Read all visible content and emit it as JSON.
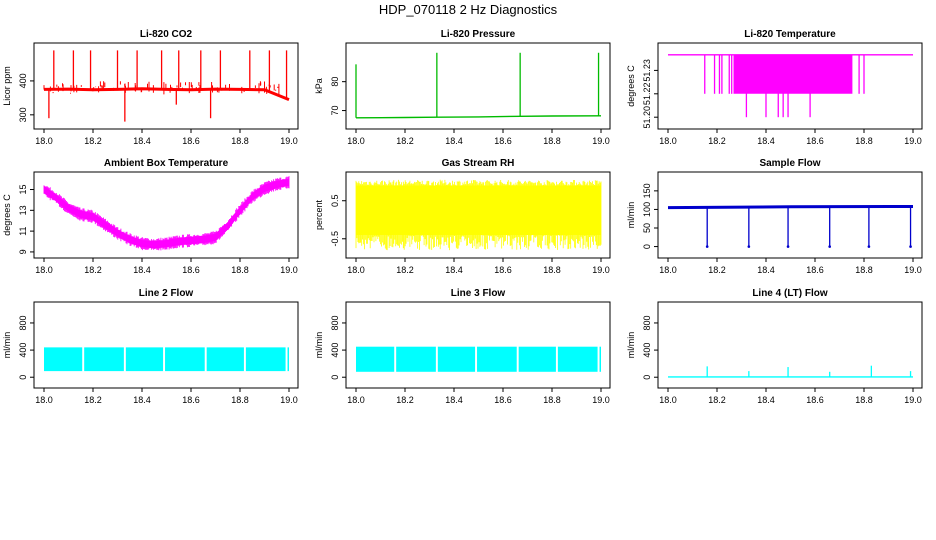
{
  "figure": {
    "title": "HDP_070118  2 Hz Diagnostics"
  },
  "chart_data": [
    {
      "id": "co2",
      "type": "line",
      "title": "Li-820 CO2",
      "ylabel": "Licor ppm",
      "color": "#ff0000",
      "xlim": [
        18.0,
        19.0
      ],
      "ylim": [
        270,
        500
      ],
      "xticks": [
        "18.0",
        "18.2",
        "18.4",
        "18.6",
        "18.8",
        "19.0"
      ],
      "yticks": [
        "300",
        "400"
      ],
      "ytick_values": [
        300,
        400
      ],
      "x": [
        18.0,
        18.1,
        18.2,
        18.3,
        18.4,
        18.5,
        18.6,
        18.7,
        18.8,
        18.9,
        19.0
      ],
      "values": [
        375,
        376,
        374,
        375,
        377,
        375,
        374,
        376,
        375,
        374,
        345
      ],
      "spikes_up": [
        {
          "x": 18.04,
          "y": 490
        },
        {
          "x": 18.12,
          "y": 490
        },
        {
          "x": 18.19,
          "y": 490
        },
        {
          "x": 18.3,
          "y": 490
        },
        {
          "x": 18.38,
          "y": 490
        },
        {
          "x": 18.48,
          "y": 490
        },
        {
          "x": 18.55,
          "y": 490
        },
        {
          "x": 18.64,
          "y": 490
        },
        {
          "x": 18.72,
          "y": 490
        },
        {
          "x": 18.84,
          "y": 490
        },
        {
          "x": 18.92,
          "y": 490
        },
        {
          "x": 18.99,
          "y": 490
        }
      ],
      "spikes_down": [
        {
          "x": 18.02,
          "y": 290
        },
        {
          "x": 18.33,
          "y": 280
        },
        {
          "x": 18.68,
          "y": 290
        },
        {
          "x": 18.54,
          "y": 330
        }
      ]
    },
    {
      "id": "pressure",
      "type": "line",
      "title": "Li-820 Pressure",
      "ylabel": "kPa",
      "color": "#00bb00",
      "xlim": [
        18.0,
        19.0
      ],
      "ylim": [
        65,
        92
      ],
      "xticks": [
        "18.0",
        "18.2",
        "18.4",
        "18.6",
        "18.8",
        "19.0"
      ],
      "yticks": [
        "70",
        "80"
      ],
      "ytick_values": [
        70,
        80
      ],
      "x": [
        18.0,
        18.2,
        18.33,
        18.5,
        18.67,
        18.8,
        19.0
      ],
      "values": [
        67.5,
        67.6,
        67.7,
        67.8,
        68.0,
        68.1,
        68.2
      ],
      "spikes_up": [
        {
          "x": 18.0,
          "y": 86
        },
        {
          "x": 18.33,
          "y": 90
        },
        {
          "x": 18.67,
          "y": 90
        },
        {
          "x": 18.99,
          "y": 90
        }
      ],
      "spikes_down": []
    },
    {
      "id": "licor_temp",
      "type": "line",
      "title": "Li-820 Temperature",
      "ylabel": "degrees C",
      "color": "#ff00ff",
      "xlim": [
        18.0,
        19.0
      ],
      "ylim": [
        51.195,
        51.245
      ],
      "xticks": [
        "18.0",
        "18.2",
        "18.4",
        "18.6",
        "18.8",
        "19.0"
      ],
      "yticks": [
        "51.20",
        "51.22",
        "51.23"
      ],
      "ytick_values": [
        51.2,
        51.215,
        51.23
      ],
      "x": [
        18.0,
        19.0
      ],
      "values": [
        51.24,
        51.24
      ],
      "dense_band": {
        "x0": 18.27,
        "x1": 18.75,
        "ymin": 51.215,
        "ymax": 51.24
      },
      "spikes_up": [],
      "spikes_down": [
        {
          "x": 18.15,
          "y": 51.215
        },
        {
          "x": 18.19,
          "y": 51.215
        },
        {
          "x": 18.21,
          "y": 51.215
        },
        {
          "x": 18.22,
          "y": 51.215
        },
        {
          "x": 18.25,
          "y": 51.215
        },
        {
          "x": 18.26,
          "y": 51.215
        },
        {
          "x": 18.32,
          "y": 51.2
        },
        {
          "x": 18.4,
          "y": 51.2
        },
        {
          "x": 18.45,
          "y": 51.2
        },
        {
          "x": 18.47,
          "y": 51.2
        },
        {
          "x": 18.49,
          "y": 51.2
        },
        {
          "x": 18.58,
          "y": 51.2
        },
        {
          "x": 18.78,
          "y": 51.215
        },
        {
          "x": 18.8,
          "y": 51.215
        }
      ]
    },
    {
      "id": "ambient_temp",
      "type": "line",
      "title": "Ambient Box Temperature",
      "ylabel": "degrees C",
      "color": "#ff00ff",
      "xlim": [
        18.0,
        19.0
      ],
      "ylim": [
        8.8,
        16.3
      ],
      "xticks": [
        "18.0",
        "18.2",
        "18.4",
        "18.6",
        "18.8",
        "19.0"
      ],
      "yticks": [
        "9",
        "11",
        "13",
        "15"
      ],
      "ytick_values": [
        9,
        11,
        13,
        15
      ],
      "x": [
        18.0,
        18.05,
        18.1,
        18.15,
        18.2,
        18.25,
        18.3,
        18.35,
        18.4,
        18.45,
        18.5,
        18.55,
        18.6,
        18.65,
        18.7,
        18.75,
        18.8,
        18.85,
        18.9,
        18.95,
        19.0
      ],
      "values": [
        15.0,
        14.2,
        13.2,
        12.6,
        12.4,
        11.6,
        10.8,
        10.2,
        9.8,
        9.7,
        9.8,
        10.0,
        10.1,
        10.2,
        10.4,
        11.5,
        13.0,
        14.3,
        15.1,
        15.5,
        15.7
      ],
      "band": 0.35,
      "spikes_up": [],
      "spikes_down": []
    },
    {
      "id": "gas_rh",
      "type": "line",
      "title": "Gas Stream RH",
      "ylabel": "percent",
      "color": "#ffff00",
      "xlim": [
        18.0,
        19.0
      ],
      "ylim": [
        -0.9,
        1.15
      ],
      "xticks": [
        "18.0",
        "18.2",
        "18.4",
        "18.6",
        "18.8",
        "19.0"
      ],
      "yticks": [
        "-0.5",
        "0.5"
      ],
      "ytick_values": [
        -0.5,
        0.5
      ],
      "x": [
        18.0,
        19.0
      ],
      "values": [
        0.2,
        0.2
      ],
      "band_range": [
        -0.4,
        0.9
      ],
      "noise_range": [
        -0.8,
        1.05
      ],
      "spikes_up": [],
      "spikes_down": []
    },
    {
      "id": "sample_flow",
      "type": "line",
      "title": "Sample Flow",
      "ylabel": "ml/min",
      "color": "#0000cc",
      "xlim": [
        18.0,
        19.0
      ],
      "ylim": [
        -20,
        190
      ],
      "xticks": [
        "18.0",
        "18.2",
        "18.4",
        "18.6",
        "18.8",
        "19.0"
      ],
      "yticks": [
        "0",
        "50",
        "100",
        "150"
      ],
      "ytick_values": [
        0,
        50,
        100,
        150
      ],
      "x": [
        18.0,
        18.5,
        19.0
      ],
      "values": [
        105,
        107,
        108
      ],
      "spikes_up": [],
      "spikes_down": [
        {
          "x": 18.16,
          "y": 0
        },
        {
          "x": 18.33,
          "y": 0
        },
        {
          "x": 18.49,
          "y": 0
        },
        {
          "x": 18.66,
          "y": 0
        },
        {
          "x": 18.82,
          "y": 0
        },
        {
          "x": 18.99,
          "y": 0
        }
      ]
    },
    {
      "id": "line2_flow",
      "type": "line",
      "title": "Line 2 Flow",
      "ylabel": "ml/min",
      "color": "#00ffff",
      "xlim": [
        18.0,
        19.0
      ],
      "ylim": [
        -100,
        1050
      ],
      "xticks": [
        "18.0",
        "18.2",
        "18.4",
        "18.6",
        "18.8",
        "19.0"
      ],
      "yticks": [
        "0",
        "400",
        "800"
      ],
      "ytick_values": [
        0,
        400,
        800
      ],
      "x": [
        18.0,
        19.0
      ],
      "values": [
        270,
        270
      ],
      "band_range": [
        90,
        440
      ],
      "gaps": [
        18.16,
        18.33,
        18.49,
        18.66,
        18.82,
        18.99
      ],
      "spikes_up": [],
      "spikes_down": []
    },
    {
      "id": "line3_flow",
      "type": "line",
      "title": "Line 3 Flow",
      "ylabel": "ml/min",
      "color": "#00ffff",
      "xlim": [
        18.0,
        19.0
      ],
      "ylim": [
        -100,
        1050
      ],
      "xticks": [
        "18.0",
        "18.2",
        "18.4",
        "18.6",
        "18.8",
        "19.0"
      ],
      "yticks": [
        "0",
        "400",
        "800"
      ],
      "ytick_values": [
        0,
        400,
        800
      ],
      "x": [
        18.0,
        19.0
      ],
      "values": [
        270,
        270
      ],
      "band_range": [
        80,
        450
      ],
      "gaps": [
        18.16,
        18.33,
        18.49,
        18.66,
        18.82,
        18.99
      ],
      "spikes_up": [],
      "spikes_down": []
    },
    {
      "id": "line4_flow",
      "type": "line",
      "title": "Line 4 (LT) Flow",
      "ylabel": "ml/min",
      "color": "#00ffff",
      "xlim": [
        18.0,
        19.0
      ],
      "ylim": [
        -100,
        1050
      ],
      "xticks": [
        "18.0",
        "18.2",
        "18.4",
        "18.6",
        "18.8",
        "19.0"
      ],
      "yticks": [
        "0",
        "400",
        "800"
      ],
      "ytick_values": [
        0,
        400,
        800
      ],
      "x": [
        18.0,
        19.0
      ],
      "values": [
        5,
        5
      ],
      "spikes_up": [
        {
          "x": 18.16,
          "y": 160
        },
        {
          "x": 18.33,
          "y": 90
        },
        {
          "x": 18.49,
          "y": 150
        },
        {
          "x": 18.66,
          "y": 80
        },
        {
          "x": 18.83,
          "y": 170
        },
        {
          "x": 18.99,
          "y": 90
        }
      ],
      "spikes_down": []
    }
  ]
}
